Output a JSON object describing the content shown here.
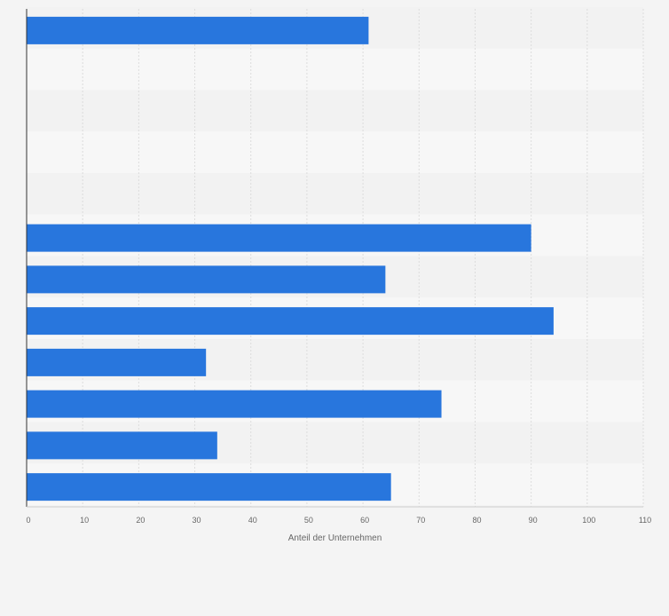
{
  "chart_data": {
    "type": "bar",
    "orientation": "horizontal",
    "categories": [
      "",
      "",
      "",
      "",
      "",
      "",
      "",
      "",
      "",
      "",
      "",
      ""
    ],
    "values": [
      61,
      null,
      null,
      null,
      null,
      90,
      64,
      94,
      32,
      74,
      34,
      65
    ],
    "title": "",
    "xlabel": "Anteil der Unternehmen",
    "ylabel": "",
    "xlim": [
      0,
      110
    ],
    "xticks": [
      0,
      10,
      20,
      30,
      40,
      50,
      60,
      70,
      80,
      90,
      100,
      110
    ],
    "grid": true,
    "legend": "none",
    "colors": {
      "bar": "#2876dd",
      "band_light": "#f7f7f7",
      "band_dark": "#f2f2f2",
      "background": "#f4f4f4",
      "grid": "#dcdcdc",
      "axis": "#333333",
      "text": "#666666"
    }
  }
}
